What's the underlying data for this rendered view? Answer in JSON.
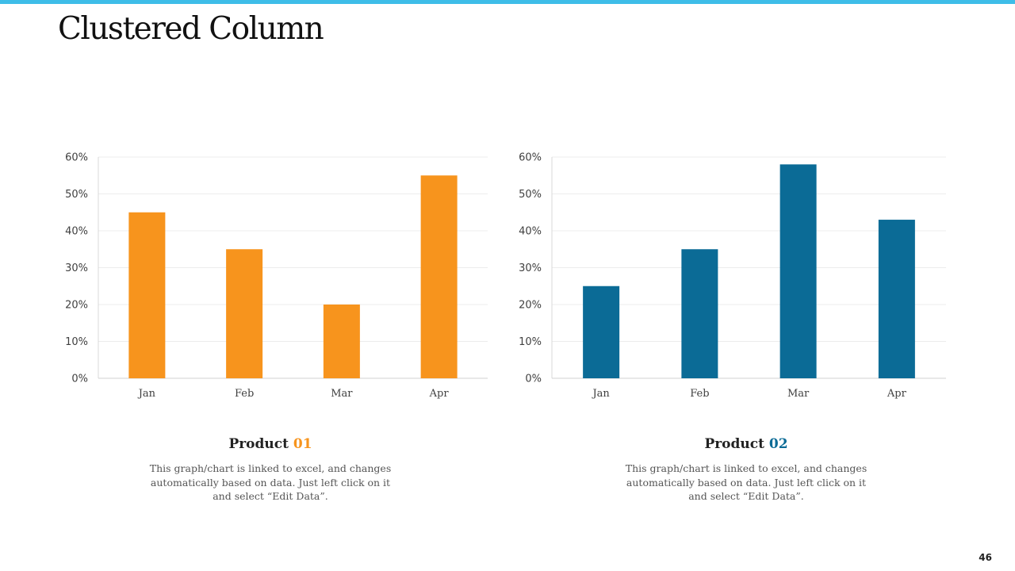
{
  "slide": {
    "title": "Clustered Column",
    "page_number": "46",
    "accent_color": "#3ebde8"
  },
  "chart_data": [
    {
      "type": "bar",
      "categories": [
        "Jan",
        "Feb",
        "Mar",
        "Apr"
      ],
      "values": [
        45,
        35,
        20,
        55
      ],
      "ylim": [
        0,
        60
      ],
      "yticks": [
        0,
        10,
        20,
        30,
        40,
        50,
        60
      ],
      "tick_suffix": "%",
      "ylabel": "",
      "xlabel": "",
      "color": "#f7941d",
      "grid": true,
      "caption_title": "Product",
      "caption_number": "01",
      "caption_text": "This graph/chart is linked to excel, and changes automatically based on data. Just left click on it and select “Edit Data”."
    },
    {
      "type": "bar",
      "categories": [
        "Jan",
        "Feb",
        "Mar",
        "Apr"
      ],
      "values": [
        25,
        35,
        58,
        43
      ],
      "ylim": [
        0,
        60
      ],
      "yticks": [
        0,
        10,
        20,
        30,
        40,
        50,
        60
      ],
      "tick_suffix": "%",
      "ylabel": "",
      "xlabel": "",
      "color": "#0b6b96",
      "grid": true,
      "caption_title": "Product",
      "caption_number": "02",
      "caption_text": "This graph/chart is linked to excel, and changes automatically based on data. Just left click on it and select “Edit Data”."
    }
  ]
}
